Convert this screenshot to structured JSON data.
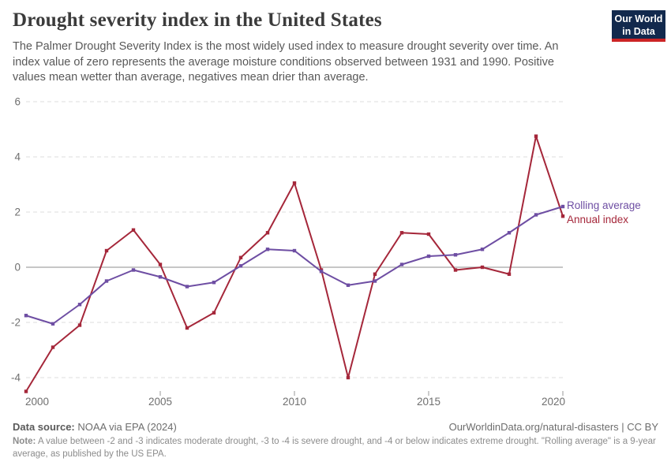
{
  "header": {
    "title": "Drought severity index in the United States",
    "subtitle": "The Palmer Drought Severity Index is the most widely used index to measure drought severity over time. An index value of zero represents the average moisture conditions observed between 1931 and 1990. Positive values mean wetter than average, negatives mean drier than average.",
    "logo": {
      "line1": "Our World",
      "line2": "in Data"
    }
  },
  "legend": {
    "rolling": "Rolling average",
    "annual": "Annual index"
  },
  "footer": {
    "source_label": "Data source:",
    "source_value": " NOAA via EPA (2024)",
    "link": "OurWorldinData.org/natural-disasters | CC BY",
    "note_label": "Note:",
    "note_value": " A value between -2 and -3 indicates moderate drought, -3 to -4 is severe drought, and -4 or below indicates extreme drought. \"Rolling average\" is a 9-year average, as published by the US EPA."
  },
  "colors": {
    "annual": "#a5273a",
    "rolling": "#6e4ea3",
    "grid": "#dcdcdc",
    "zero_line": "#a3a3a3",
    "axis_text": "#6f6f6f",
    "logo_bg": "#12294d",
    "logo_accent": "#cc2425"
  },
  "chart_data": {
    "type": "line",
    "title": "Drought severity index in the United States",
    "xlabel": "",
    "ylabel": "Palmer Drought Severity Index",
    "x": [
      2000,
      2001,
      2002,
      2003,
      2004,
      2005,
      2006,
      2007,
      2008,
      2009,
      2010,
      2011,
      2012,
      2013,
      2014,
      2015,
      2016,
      2017,
      2018,
      2019,
      2020
    ],
    "series": [
      {
        "name": "Annual index",
        "color": "#a5273a",
        "values": [
          -4.5,
          -2.9,
          -2.1,
          0.6,
          1.35,
          0.1,
          -2.2,
          -1.65,
          0.35,
          1.25,
          3.05,
          -0.1,
          -4.0,
          -0.25,
          1.25,
          1.2,
          -0.1,
          0.0,
          -0.25,
          4.75,
          1.85
        ]
      },
      {
        "name": "Rolling average",
        "color": "#6e4ea3",
        "values": [
          -1.75,
          -2.05,
          -1.35,
          -0.5,
          -0.1,
          -0.35,
          -0.7,
          -0.55,
          0.05,
          0.65,
          0.6,
          -0.15,
          -0.65,
          -0.5,
          0.1,
          0.4,
          0.45,
          0.65,
          1.25,
          1.9,
          2.2
        ]
      }
    ],
    "yticks": [
      6,
      4,
      2,
      0,
      -2,
      -4
    ],
    "xticks": [
      2000,
      2005,
      2010,
      2015,
      2020
    ],
    "ylim": [
      -4.75,
      6
    ],
    "xlim": [
      2000,
      2020
    ],
    "grid": "horizontal-dashed",
    "zero_line": true,
    "legend_position": "right-of-line-ends"
  }
}
